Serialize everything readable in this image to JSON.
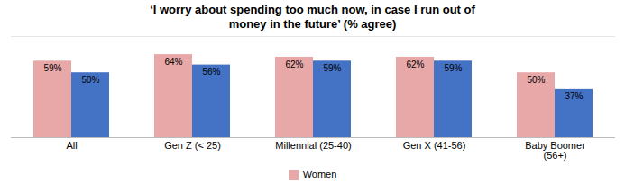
{
  "chart_data": {
    "type": "bar",
    "title": "‘I worry about spending too much now, in case I run out of\nmoney in the future’ (% agree)",
    "categories": [
      "All",
      "Gen Z (< 25)",
      "Millennial (25-40)",
      "Gen X (41-56)",
      "Baby Boomer\n(56+)"
    ],
    "series": [
      {
        "name": "Women",
        "color": "#e8a8a8",
        "values": [
          59,
          64,
          62,
          62,
          50
        ],
        "value_labels": [
          "59%",
          "64%",
          "62%",
          "62%",
          "50%"
        ]
      },
      {
        "color": "#4472c4",
        "values": [
          50,
          56,
          59,
          59,
          37
        ],
        "value_labels": [
          "50%",
          "56%",
          "59%",
          "59%",
          "37%"
        ]
      }
    ],
    "ylim": [
      0,
      78
    ],
    "grid": false,
    "data_labels": true,
    "tick_labels": "x",
    "legend": "bottom"
  }
}
